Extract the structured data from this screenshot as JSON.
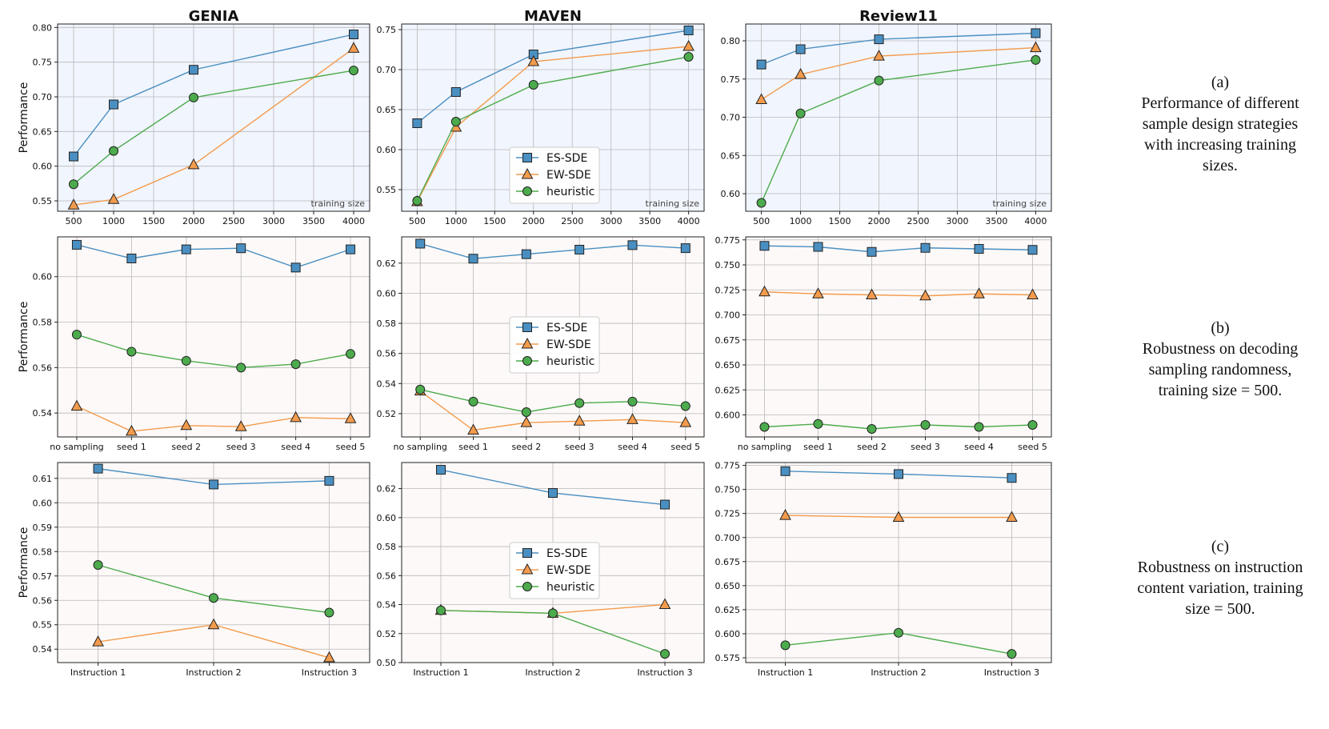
{
  "series_legend": [
    "ES-SDE",
    "EW-SDE",
    "heuristic"
  ],
  "colors": {
    "es_sde": "#4a8fc1",
    "ew_sde": "#f39b4d",
    "heuristic": "#4cab4c",
    "row_a_bg": "#f1f5fd",
    "row_bc_bg": "#fdf9f8"
  },
  "column_titles": [
    "GENIA",
    "MAVEN",
    "Review11"
  ],
  "captions": [
    {
      "tag": "(a)",
      "lines": [
        "Performance of different",
        "sample design strategies",
        "with increasing training",
        "sizes."
      ]
    },
    {
      "tag": "(b)",
      "lines": [
        "Robustness on decoding",
        "sampling randomness,",
        "training size = 500."
      ]
    },
    {
      "tag": "(c)",
      "lines": [
        "Robustness on instruction",
        "content variation, training",
        "size = 500."
      ]
    }
  ],
  "chart_data": [
    {
      "type": "line",
      "row": "a",
      "column": "GENIA",
      "title": "GENIA",
      "ylabel": "Performance",
      "xlabel_annotation": "training size",
      "x": [
        500,
        1000,
        2000,
        4000
      ],
      "xlim": [
        300,
        4200
      ],
      "xticks": [
        500,
        1000,
        1500,
        2000,
        2500,
        3000,
        3500,
        4000
      ],
      "ylim": [
        0.535,
        0.805
      ],
      "yticks": [
        "0.55",
        "0.60",
        "0.65",
        "0.70",
        "0.75",
        "0.80"
      ],
      "legend": "none",
      "series": [
        {
          "name": "ES-SDE",
          "values": [
            0.614,
            0.689,
            0.739,
            0.79
          ]
        },
        {
          "name": "EW-SDE",
          "values": [
            0.544,
            0.552,
            0.602,
            0.77
          ]
        },
        {
          "name": "heuristic",
          "values": [
            0.574,
            0.622,
            0.699,
            0.738
          ]
        }
      ]
    },
    {
      "type": "line",
      "row": "a",
      "column": "MAVEN",
      "title": "MAVEN",
      "ylabel": "",
      "xlabel_annotation": "training size",
      "x": [
        500,
        1000,
        2000,
        4000
      ],
      "xlim": [
        300,
        4200
      ],
      "xticks": [
        500,
        1000,
        1500,
        2000,
        2500,
        3000,
        3500,
        4000
      ],
      "ylim": [
        0.523,
        0.757
      ],
      "yticks": [
        "0.55",
        "0.60",
        "0.65",
        "0.70",
        "0.75"
      ],
      "legend": "center",
      "series": [
        {
          "name": "ES-SDE",
          "values": [
            0.633,
            0.672,
            0.719,
            0.749
          ]
        },
        {
          "name": "EW-SDE",
          "values": [
            0.535,
            0.628,
            0.71,
            0.729
          ]
        },
        {
          "name": "heuristic",
          "values": [
            0.536,
            0.635,
            0.681,
            0.716
          ]
        }
      ]
    },
    {
      "type": "line",
      "row": "a",
      "column": "Review11",
      "title": "Review11",
      "ylabel": "",
      "xlabel_annotation": "training size",
      "x": [
        500,
        1000,
        2000,
        4000
      ],
      "xlim": [
        300,
        4200
      ],
      "xticks": [
        500,
        1000,
        1500,
        2000,
        2500,
        3000,
        3500,
        4000
      ],
      "ylim": [
        0.577,
        0.822
      ],
      "yticks": [
        "0.60",
        "0.65",
        "0.70",
        "0.75",
        "0.80"
      ],
      "legend": "none",
      "series": [
        {
          "name": "ES-SDE",
          "values": [
            0.769,
            0.789,
            0.802,
            0.81
          ]
        },
        {
          "name": "EW-SDE",
          "values": [
            0.723,
            0.756,
            0.78,
            0.791
          ]
        },
        {
          "name": "heuristic",
          "values": [
            0.588,
            0.705,
            0.748,
            0.775
          ]
        }
      ]
    },
    {
      "type": "line",
      "row": "b",
      "column": "GENIA",
      "ylabel": "Performance",
      "categories": [
        "no sampling",
        "seed 1",
        "seed 2",
        "seed 3",
        "seed 4",
        "seed 5"
      ],
      "ylim": [
        0.5295,
        0.6175
      ],
      "yticks": [
        "0.54",
        "0.56",
        "0.58",
        "0.60"
      ],
      "legend": "none",
      "series": [
        {
          "name": "ES-SDE",
          "values": [
            0.614,
            0.608,
            0.612,
            0.6125,
            0.604,
            0.612
          ]
        },
        {
          "name": "EW-SDE",
          "values": [
            0.543,
            0.532,
            0.5345,
            0.534,
            0.538,
            0.5375
          ]
        },
        {
          "name": "heuristic",
          "values": [
            0.5745,
            0.567,
            0.563,
            0.56,
            0.5615,
            0.566
          ]
        }
      ]
    },
    {
      "type": "line",
      "row": "b",
      "column": "MAVEN",
      "ylabel": "",
      "categories": [
        "no sampling",
        "seed 1",
        "seed 2",
        "seed 3",
        "seed 4",
        "seed 5"
      ],
      "ylim": [
        0.5045,
        0.6375
      ],
      "yticks": [
        "0.52",
        "0.54",
        "0.56",
        "0.58",
        "0.60",
        "0.62"
      ],
      "legend": "center",
      "series": [
        {
          "name": "ES-SDE",
          "values": [
            0.633,
            0.623,
            0.626,
            0.629,
            0.632,
            0.63
          ]
        },
        {
          "name": "EW-SDE",
          "values": [
            0.535,
            0.509,
            0.514,
            0.515,
            0.516,
            0.514
          ]
        },
        {
          "name": "heuristic",
          "values": [
            0.536,
            0.528,
            0.521,
            0.527,
            0.528,
            0.525
          ]
        }
      ]
    },
    {
      "type": "line",
      "row": "b",
      "column": "Review11",
      "ylabel": "",
      "categories": [
        "no sampling",
        "seed 1",
        "seed 2",
        "seed 3",
        "seed 4",
        "seed 5"
      ],
      "ylim": [
        0.578,
        0.778
      ],
      "yticks": [
        "0.600",
        "0.625",
        "0.650",
        "0.675",
        "0.700",
        "0.725",
        "0.750",
        "0.775"
      ],
      "legend": "none",
      "series": [
        {
          "name": "ES-SDE",
          "values": [
            0.769,
            0.768,
            0.763,
            0.767,
            0.766,
            0.765
          ]
        },
        {
          "name": "EW-SDE",
          "values": [
            0.723,
            0.721,
            0.72,
            0.719,
            0.721,
            0.72
          ]
        },
        {
          "name": "heuristic",
          "values": [
            0.588,
            0.591,
            0.586,
            0.59,
            0.588,
            0.59
          ]
        }
      ]
    },
    {
      "type": "line",
      "row": "c",
      "column": "GENIA",
      "ylabel": "Performance",
      "categories": [
        "Instruction 1",
        "Instruction 2",
        "Instruction 3"
      ],
      "ylim": [
        0.5345,
        0.6165
      ],
      "yticks": [
        "0.54",
        "0.55",
        "0.56",
        "0.57",
        "0.58",
        "0.59",
        "0.60",
        "0.61"
      ],
      "legend": "none",
      "series": [
        {
          "name": "ES-SDE",
          "values": [
            0.614,
            0.6075,
            0.609
          ]
        },
        {
          "name": "EW-SDE",
          "values": [
            0.543,
            0.55,
            0.5365
          ]
        },
        {
          "name": "heuristic",
          "values": [
            0.5745,
            0.561,
            0.555
          ]
        }
      ]
    },
    {
      "type": "line",
      "row": "c",
      "column": "MAVEN",
      "ylabel": "",
      "categories": [
        "Instruction 1",
        "Instruction 2",
        "Instruction 3"
      ],
      "ylim": [
        0.5,
        0.638
      ],
      "yticks": [
        "0.50",
        "0.52",
        "0.54",
        "0.56",
        "0.58",
        "0.60",
        "0.62"
      ],
      "legend": "center",
      "series": [
        {
          "name": "ES-SDE",
          "values": [
            0.633,
            0.617,
            0.609
          ]
        },
        {
          "name": "EW-SDE",
          "values": [
            0.536,
            0.534,
            0.54
          ]
        },
        {
          "name": "heuristic",
          "values": [
            0.536,
            0.534,
            0.506
          ]
        }
      ]
    },
    {
      "type": "line",
      "row": "c",
      "column": "Review11",
      "ylabel": "",
      "categories": [
        "Instruction 1",
        "Instruction 2",
        "Instruction 3"
      ],
      "ylim": [
        0.57,
        0.778
      ],
      "yticks": [
        "0.575",
        "0.600",
        "0.625",
        "0.650",
        "0.675",
        "0.700",
        "0.725",
        "0.750",
        "0.775"
      ],
      "legend": "none",
      "series": [
        {
          "name": "ES-SDE",
          "values": [
            0.769,
            0.766,
            0.762
          ]
        },
        {
          "name": "EW-SDE",
          "values": [
            0.723,
            0.721,
            0.721
          ]
        },
        {
          "name": "heuristic",
          "values": [
            0.588,
            0.601,
            0.579
          ]
        }
      ]
    }
  ]
}
